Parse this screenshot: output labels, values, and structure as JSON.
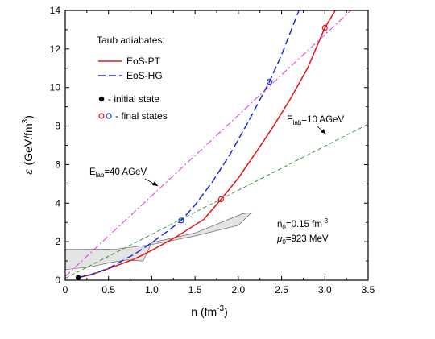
{
  "chart_data": {
    "type": "line",
    "xlabel": "n (fm",
    "xlabel_sup": "-3",
    "xlabel_end": ")",
    "ylabel_symbol": "ε",
    "ylabel": " (GeV/fm",
    "ylabel_sup": "3",
    "ylabel_end": ")",
    "xlim": [
      0,
      3.5
    ],
    "ylim": [
      0,
      14
    ],
    "x_ticks": [
      "0",
      "0.5",
      "1.0",
      "1.5",
      "2.0",
      "2.5",
      "3.0",
      "3.5"
    ],
    "x_tick_values": [
      0,
      0.5,
      1.0,
      1.5,
      2.0,
      2.5,
      3.0,
      3.5
    ],
    "y_ticks": [
      "0",
      "2",
      "4",
      "6",
      "8",
      "10",
      "12",
      "14"
    ],
    "y_tick_values": [
      0,
      2,
      4,
      6,
      8,
      10,
      12,
      14
    ],
    "grid": false,
    "legend": {
      "title": "Taub adiabates:",
      "items": [
        {
          "label": "EoS-PT",
          "style": "solid",
          "color": "#e8131b"
        },
        {
          "label": "EoS-HG",
          "style": "dashed",
          "color": "#1d2bd6"
        }
      ],
      "markers": [
        {
          "label": " - initial state"
        },
        {
          "label": " - final states"
        }
      ]
    },
    "series": [
      {
        "name": "EoS-PT",
        "color": "#e8131b",
        "style": "solid",
        "points": [
          [
            0.15,
            0.14
          ],
          [
            0.3,
            0.28
          ],
          [
            0.5,
            0.6
          ],
          [
            0.8,
            1.1
          ],
          [
            1.0,
            1.55
          ],
          [
            1.3,
            2.3
          ],
          [
            1.6,
            3.15
          ],
          [
            1.8,
            4.2
          ],
          [
            2.0,
            5.3
          ],
          [
            2.2,
            6.6
          ],
          [
            2.4,
            7.95
          ],
          [
            2.6,
            9.4
          ],
          [
            2.8,
            11.0
          ],
          [
            3.0,
            13.1
          ],
          [
            3.12,
            14.0
          ]
        ]
      },
      {
        "name": "EoS-HG",
        "color": "#1d2bd6",
        "style": "dashed",
        "points": [
          [
            0.15,
            0.14
          ],
          [
            0.3,
            0.3
          ],
          [
            0.5,
            0.62
          ],
          [
            0.8,
            1.35
          ],
          [
            1.0,
            1.95
          ],
          [
            1.2,
            2.6
          ],
          [
            1.34,
            3.1
          ],
          [
            1.5,
            3.9
          ],
          [
            1.7,
            5.1
          ],
          [
            1.9,
            6.5
          ],
          [
            2.1,
            8.1
          ],
          [
            2.3,
            9.8
          ],
          [
            2.36,
            10.3
          ],
          [
            2.5,
            11.7
          ],
          [
            2.7,
            14.0
          ]
        ]
      },
      {
        "name": "",
        "color": "#dd22dd",
        "style": "dashdot",
        "points": [
          [
            0.0,
            0.2
          ],
          [
            3.3,
            14.0
          ]
        ]
      },
      {
        "name": "",
        "color": "#2e8a2e",
        "style": "dashed",
        "points": [
          [
            0.0,
            0.1
          ],
          [
            3.5,
            8.1
          ]
        ]
      }
    ],
    "shaded_regions": [
      {
        "color": "#e4e4e4",
        "points": [
          [
            0.0,
            1.6
          ],
          [
            0.6,
            1.62
          ],
          [
            1.0,
            1.85
          ],
          [
            1.5,
            2.3
          ],
          [
            2.0,
            2.85
          ],
          [
            2.15,
            3.5
          ],
          [
            2.05,
            3.45
          ],
          [
            1.5,
            2.45
          ],
          [
            1.0,
            1.95
          ],
          [
            0.9,
            1.0
          ],
          [
            0.7,
            1.05
          ],
          [
            0.5,
            0.9
          ],
          [
            0.3,
            0.7
          ],
          [
            0.0,
            0.55
          ]
        ]
      }
    ],
    "initial_state": {
      "x": 0.15,
      "y": 0.14,
      "color": "#000000"
    },
    "final_states": [
      {
        "x": 1.34,
        "y": 3.1,
        "color": "#1d2bd6"
      },
      {
        "x": 2.36,
        "y": 10.3,
        "color": "#1d2bd6"
      },
      {
        "x": 1.8,
        "y": 4.2,
        "color": "#e8131b"
      },
      {
        "x": 3.0,
        "y": 13.1,
        "color": "#e8131b"
      }
    ],
    "annotations": {
      "elab_low": {
        "text": "E",
        "sub": "lab",
        "text_end": "=10 AGeV"
      },
      "elab_high": {
        "text": "E",
        "sub": "lab",
        "text_end": "=40 AGeV"
      },
      "n0": {
        "text": "n",
        "sub": "0",
        "text_mid": "=0.15 fm",
        "sup": "-3"
      },
      "mu0": {
        "text": "μ",
        "sub": "0",
        "text_end": "=923 MeV"
      }
    }
  }
}
